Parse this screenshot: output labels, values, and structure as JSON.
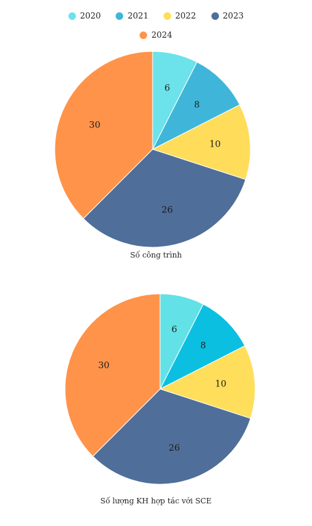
{
  "legend": {
    "items": [
      {
        "label": "2020",
        "color": "#6ce2ea"
      },
      {
        "label": "2021",
        "color": "#3fb6d9"
      },
      {
        "label": "2022",
        "color": "#ffdc5a"
      },
      {
        "label": "2023",
        "color": "#4f6e99"
      },
      {
        "label": "2024",
        "color": "#ff934a"
      }
    ]
  },
  "chart_data": [
    {
      "type": "pie",
      "title": "Số công trình",
      "categories": [
        "2020",
        "2021",
        "2022",
        "2023",
        "2024"
      ],
      "values": [
        6,
        8,
        10,
        26,
        30
      ],
      "colors": [
        "#6ce2ea",
        "#3fb6d9",
        "#ffdc5a",
        "#4f6e99",
        "#ff934a"
      ]
    },
    {
      "type": "pie",
      "title": "Số lượng KH hợp tác với SCE",
      "categories": [
        "2020",
        "2021",
        "2022",
        "2023",
        "2024"
      ],
      "values": [
        6,
        8,
        10,
        26,
        30
      ],
      "colors": [
        "#62e1e6",
        "#0bbfe0",
        "#ffde5c",
        "#4f6e99",
        "#ff934a"
      ]
    }
  ]
}
